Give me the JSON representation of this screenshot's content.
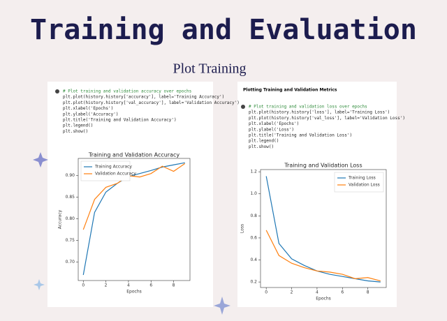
{
  "header": {
    "title": "Training and Evaluation",
    "subtitle": "Plot Training"
  },
  "panels": [
    {
      "code": [
        "# Plot training and validation accuracy over epochs",
        "plt.plot(history.history['accuracy'], label='Training Accuracy')",
        "plt.plot(history.history['val_accuracy'], label='Validation Accuracy')",
        "plt.xlabel('Epochs')",
        "plt.ylabel('Accuracy')",
        "plt.title('Training and Validation Accuracy')",
        "plt.legend()",
        "plt.show()"
      ],
      "chart": {
        "type": "line",
        "title": "Training and Validation Accuracy",
        "x_label": "Epochs",
        "y_label": "Accuracy",
        "x": [
          0,
          1,
          2,
          3,
          4,
          5,
          6,
          7,
          8,
          9
        ],
        "series": [
          {
            "name": "Training Accuracy",
            "color": "#1f77b4",
            "values": [
              0.67,
              0.815,
              0.862,
              0.882,
              0.898,
              0.905,
              0.912,
              0.92,
              0.925,
              0.93
            ]
          },
          {
            "name": "Validation Accuracy",
            "color": "#ff7f0e",
            "values": [
              0.775,
              0.845,
              0.873,
              0.882,
              0.9,
              0.897,
              0.905,
              0.922,
              0.91,
              0.928
            ]
          }
        ],
        "xlim": [
          -0.45,
          9.45
        ],
        "ylim": [
          0.657,
          0.94
        ],
        "xticks": [
          0,
          2,
          4,
          6,
          8
        ],
        "yticks": [
          {
            "value": 0.7,
            "label": "0.70"
          },
          0.75,
          {
            "value": 0.8,
            "label": "0.80"
          },
          0.85,
          {
            "value": 0.9,
            "label": "0.90"
          }
        ],
        "legend": "upper-left"
      }
    },
    {
      "heading": "Plotting Training and Validation Metrics",
      "code": [
        "# Plot training and validation loss over epochs",
        "plt.plot(history.history['loss'], label='Training Loss')",
        "plt.plot(history.history['val_loss'], label='Validation Loss')",
        "plt.xlabel('Epochs')",
        "plt.ylabel('Loss')",
        "plt.title('Training and Validation Loss')",
        "plt.legend()",
        "plt.show()"
      ],
      "chart": {
        "type": "line",
        "title": "Training and Validation Loss",
        "x_label": "Epochs",
        "y_label": "Loss",
        "x": [
          0,
          1,
          2,
          3,
          4,
          5,
          6,
          7,
          8,
          9
        ],
        "series": [
          {
            "name": "Training Loss",
            "color": "#1f77b4",
            "values": [
              1.16,
              0.55,
              0.41,
              0.35,
              0.3,
              0.27,
              0.25,
              0.23,
              0.21,
              0.2
            ]
          },
          {
            "name": "Validation Loss",
            "color": "#ff7f0e",
            "values": [
              0.67,
              0.44,
              0.37,
              0.33,
              0.3,
              0.29,
              0.27,
              0.23,
              0.24,
              0.21
            ]
          }
        ],
        "xlim": [
          -0.45,
          9.45
        ],
        "ylim": [
          0.15,
          1.22
        ],
        "xticks": [
          0,
          2,
          4,
          6,
          8
        ],
        "yticks": [
          0.2,
          0.4,
          0.6,
          0.8,
          {
            "value": 1.0,
            "label": "1.0"
          },
          1.2
        ],
        "legend": "upper-right"
      }
    }
  ]
}
